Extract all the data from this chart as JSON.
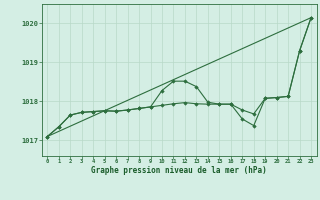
{
  "title": "Graphe pression niveau de la mer (hPa)",
  "bg_color": "#d4eee4",
  "grid_color": "#b8d9c8",
  "line_color": "#2d6e3e",
  "marker_color": "#2d6e3e",
  "x_ticks": [
    0,
    1,
    2,
    3,
    4,
    5,
    6,
    7,
    8,
    9,
    10,
    11,
    12,
    13,
    14,
    15,
    16,
    17,
    18,
    19,
    20,
    21,
    22,
    23
  ],
  "ylim": [
    1016.6,
    1020.5
  ],
  "yticks": [
    1017,
    1018,
    1019,
    1020
  ],
  "hours": [
    0,
    1,
    2,
    3,
    4,
    5,
    6,
    7,
    8,
    9,
    10,
    11,
    12,
    13,
    14,
    15,
    16,
    17,
    18,
    19,
    20,
    21,
    22,
    23
  ],
  "series_smooth": [
    1017.1,
    1017.35,
    1017.65,
    1017.72,
    1017.74,
    1017.76,
    1017.75,
    1017.78,
    1017.82,
    1017.86,
    1017.9,
    1017.94,
    1017.97,
    1017.94,
    1017.93,
    1017.93,
    1017.93,
    1017.78,
    1017.68,
    1018.08,
    1018.1,
    1018.13,
    1019.3,
    1020.15
  ],
  "series_detail": [
    1017.1,
    1017.35,
    1017.65,
    1017.72,
    1017.74,
    1017.76,
    1017.75,
    1017.78,
    1017.82,
    1017.86,
    1018.28,
    1018.52,
    1018.52,
    1018.38,
    1017.98,
    1017.93,
    1017.93,
    1017.55,
    1017.38,
    1018.08,
    1018.1,
    1018.13,
    1019.3,
    1020.15
  ],
  "trend_x": [
    0,
    23
  ],
  "trend_y": [
    1017.1,
    1020.15
  ]
}
